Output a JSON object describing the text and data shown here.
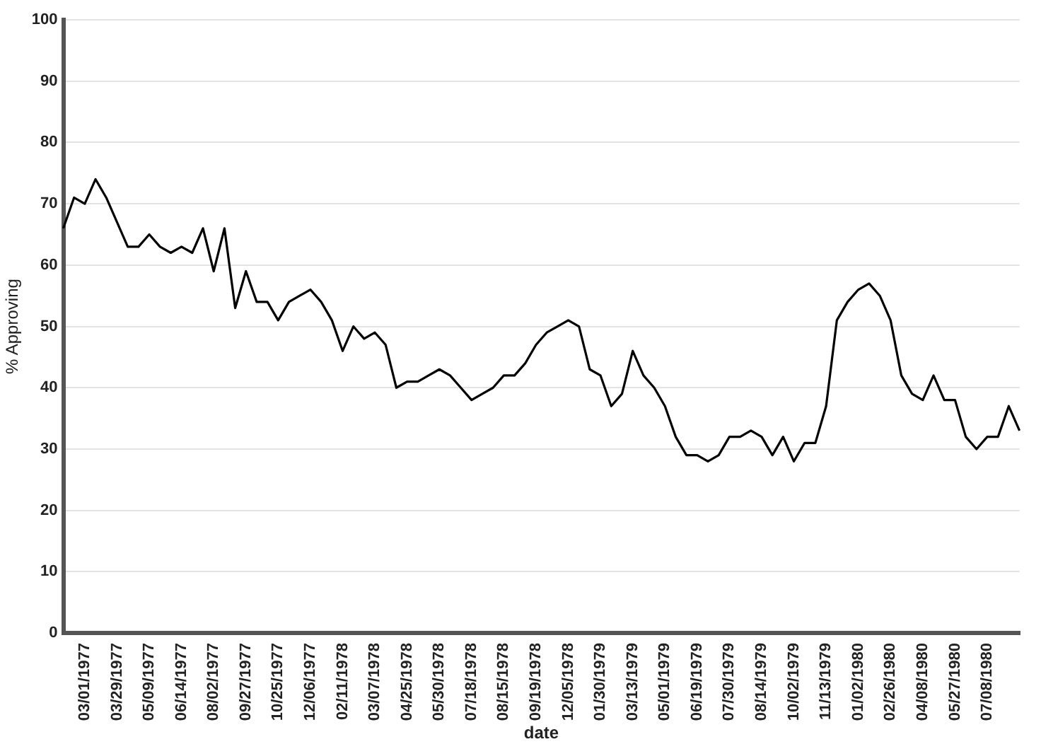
{
  "chart_data": {
    "type": "line",
    "xlabel": "date",
    "ylabel": "% Approving",
    "categories": [
      null,
      null,
      "03/01/1977",
      null,
      null,
      "03/29/1977",
      null,
      null,
      "05/09/1977",
      null,
      null,
      "06/14/1977",
      null,
      null,
      "08/02/1977",
      null,
      null,
      "09/27/1977",
      null,
      null,
      "10/25/1977",
      null,
      null,
      "12/06/1977",
      null,
      null,
      "02/11/1978",
      null,
      null,
      "03/07/1978",
      null,
      null,
      "04/25/1978",
      null,
      null,
      "05/30/1978",
      null,
      null,
      "07/18/1978",
      null,
      null,
      "08/15/1978",
      null,
      null,
      "09/19/1978",
      null,
      null,
      "12/05/1978",
      null,
      null,
      "01/30/1979",
      null,
      null,
      "03/13/1979",
      null,
      null,
      "05/01/1979",
      null,
      null,
      "06/19/1979",
      null,
      null,
      "07/30/1979",
      null,
      null,
      "08/14/1979",
      null,
      null,
      "10/02/1979",
      null,
      null,
      "11/13/1979",
      null,
      null,
      "01/02/1980",
      null,
      null,
      "02/26/1980",
      null,
      null,
      "04/08/1980",
      null,
      null,
      "05/27/1980",
      null,
      null,
      "07/08/1980",
      null,
      null,
      null
    ],
    "series": [
      {
        "color": "#000000",
        "values": [
          66,
          71,
          70,
          74,
          71,
          67,
          63,
          63,
          65,
          63,
          62,
          63,
          62,
          66,
          59,
          66,
          53,
          59,
          54,
          54,
          51,
          54,
          55,
          56,
          54,
          51,
          46,
          50,
          48,
          49,
          47,
          40,
          41,
          41,
          42,
          43,
          42,
          40,
          38,
          39,
          40,
          42,
          42,
          44,
          47,
          49,
          50,
          51,
          50,
          43,
          42,
          37,
          39,
          46,
          42,
          40,
          37,
          32,
          29,
          29,
          28,
          29,
          32,
          32,
          33,
          32,
          29,
          32,
          28,
          31,
          31,
          37,
          51,
          54,
          56,
          57,
          55,
          51,
          42,
          39,
          38,
          42,
          38,
          38,
          32,
          30,
          32,
          32,
          37,
          33
        ]
      }
    ],
    "ylim": [
      0,
      100
    ],
    "yticks": [
      0,
      10,
      20,
      30,
      40,
      50,
      60,
      70,
      80,
      90,
      100
    ],
    "grid": "y",
    "legend": false,
    "marker": "none",
    "line_style": "solid"
  }
}
